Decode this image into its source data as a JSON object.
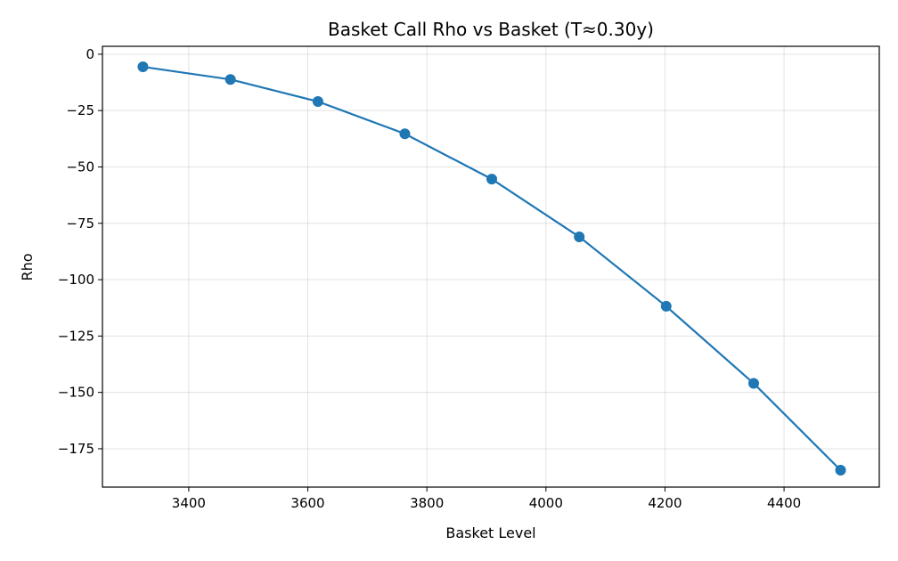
{
  "chart_data": {
    "type": "line",
    "title": "Basket Call Rho vs Basket (T≈0.30y)",
    "xlabel": "Basket Level",
    "ylabel": "Rho",
    "x": [
      3323,
      3470,
      3617,
      3763,
      3909,
      4056,
      4202,
      4349,
      4495
    ],
    "series": [
      {
        "values": [
          -5.6,
          -11.2,
          -21.0,
          -35.3,
          -55.4,
          -81.0,
          -111.8,
          -146.0,
          -184.5
        ]
      }
    ],
    "xlim": [
      3255,
      4560
    ],
    "ylim": [
      -192,
      3.5
    ],
    "xticks": [
      3400,
      3600,
      3800,
      4000,
      4200,
      4400
    ],
    "yticks": [
      0,
      -25,
      -50,
      -75,
      -100,
      -125,
      -150,
      -175
    ],
    "grid": true,
    "color": "#1f77b4"
  }
}
